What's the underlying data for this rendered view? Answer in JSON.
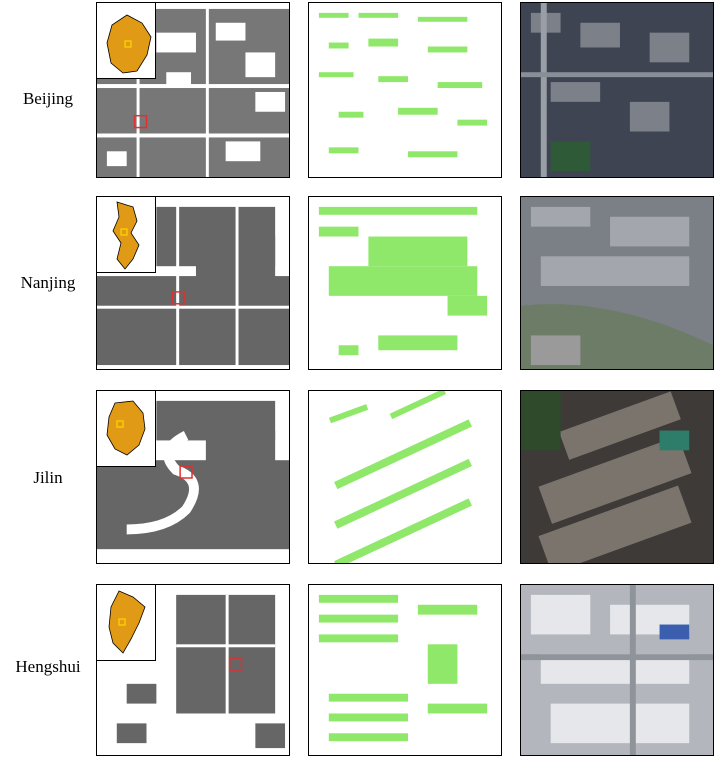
{
  "rows": [
    {
      "city": "Beijing"
    },
    {
      "city": "Nanjing"
    },
    {
      "city": "Jilin"
    },
    {
      "city": "Hengshui"
    }
  ],
  "colors": {
    "footprint_dark": "#555555",
    "building_green": "#8fe86a",
    "province_fill": "#e19a16",
    "study_area_box": "#e03030",
    "inset_box": "#ffd400"
  },
  "icons": {
    "inset_map": "province-locator-map-icon",
    "study_box": "study-area-box-icon"
  }
}
